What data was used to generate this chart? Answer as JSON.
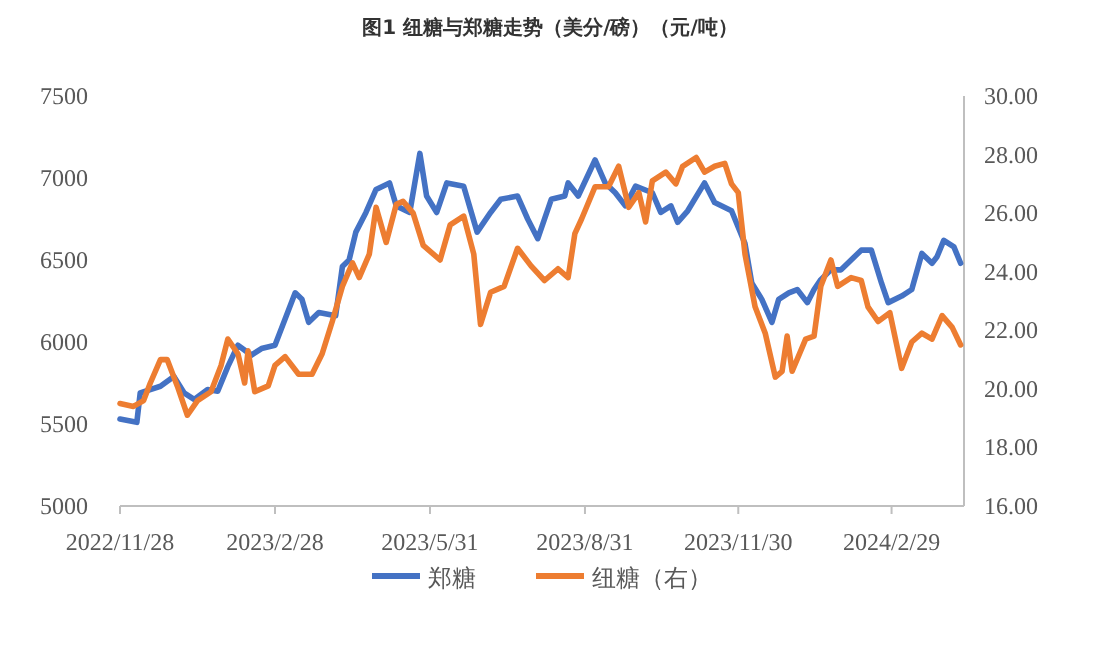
{
  "chart_data": {
    "type": "line",
    "title": "图1 纽糖与郑糖走势（美分/磅）（元/吨）",
    "legend": "bottom",
    "line_style": "solid",
    "marker": "none",
    "xlim": [
      "2022-11-28",
      "2024-04-12"
    ],
    "xticks": [
      {
        "value": "2022-11-28",
        "label": "2022/11/28"
      },
      {
        "value": "2023-02-28",
        "label": "2023/2/28"
      },
      {
        "value": "2023-05-31",
        "label": "2023/5/31"
      },
      {
        "value": "2023-08-31",
        "label": "2023/8/31"
      },
      {
        "value": "2023-11-30",
        "label": "2023/11/30"
      },
      {
        "value": "2024-02-29",
        "label": "2024/2/29"
      }
    ],
    "ylim": [
      5000,
      7500
    ],
    "yticks": [
      5000,
      5500,
      6000,
      6500,
      7000,
      7500
    ],
    "y2lim": [
      16,
      30
    ],
    "y2ticks": [
      {
        "value": 16,
        "label": "16.00"
      },
      {
        "value": 18,
        "label": "18.00"
      },
      {
        "value": 20,
        "label": "20.00"
      },
      {
        "value": 22,
        "label": "22.00"
      },
      {
        "value": 24,
        "label": "24.00"
      },
      {
        "value": 26,
        "label": "26.00"
      },
      {
        "value": 28,
        "label": "28.00"
      },
      {
        "value": 30,
        "label": "30.00"
      }
    ],
    "series": [
      {
        "name": "郑糖",
        "color": "#4472c4",
        "type": "line",
        "x": [
          "2022-11-28",
          "2022-12-08",
          "2022-12-10",
          "2022-12-22",
          "2022-12-30",
          "2023-01-05",
          "2023-01-11",
          "2023-01-19",
          "2023-01-25",
          "2023-01-31",
          "2023-02-06",
          "2023-02-14",
          "2023-02-20",
          "2023-02-28",
          "2023-03-06",
          "2023-03-12",
          "2023-03-16",
          "2023-03-20",
          "2023-03-26",
          "2023-04-05",
          "2023-04-09",
          "2023-04-13",
          "2023-04-17",
          "2023-04-23",
          "2023-04-29",
          "2023-05-07",
          "2023-05-11",
          "2023-05-19",
          "2023-05-25",
          "2023-05-29",
          "2023-06-04",
          "2023-06-10",
          "2023-06-20",
          "2023-06-28",
          "2023-07-06",
          "2023-07-12",
          "2023-07-22",
          "2023-07-28",
          "2023-08-03",
          "2023-08-11",
          "2023-08-19",
          "2023-08-21",
          "2023-08-27",
          "2023-09-06",
          "2023-09-12",
          "2023-09-18",
          "2023-09-24",
          "2023-09-30",
          "2023-10-10",
          "2023-10-15",
          "2023-10-21",
          "2023-10-25",
          "2023-10-31",
          "2023-11-10",
          "2023-11-16",
          "2023-11-26",
          "2023-11-30",
          "2023-12-04",
          "2023-12-08",
          "2023-12-14",
          "2023-12-20",
          "2023-12-24",
          "2023-12-30",
          "2024-01-04",
          "2024-01-10",
          "2024-01-14",
          "2024-01-18",
          "2024-01-24",
          "2024-01-30",
          "2024-02-05",
          "2024-02-11",
          "2024-02-17",
          "2024-02-23",
          "2024-02-27",
          "2024-03-06",
          "2024-03-12",
          "2024-03-18",
          "2024-03-24",
          "2024-03-27",
          "2024-03-31",
          "2024-04-06",
          "2024-04-10"
        ],
        "values": [
          5530,
          5510,
          5690,
          5730,
          5790,
          5690,
          5650,
          5710,
          5700,
          5850,
          5980,
          5920,
          5960,
          5980,
          6140,
          6300,
          6260,
          6120,
          6180,
          6160,
          6460,
          6500,
          6670,
          6790,
          6930,
          6970,
          6830,
          6790,
          7150,
          6890,
          6790,
          6970,
          6950,
          6670,
          6790,
          6870,
          6890,
          6750,
          6630,
          6870,
          6890,
          6970,
          6890,
          7110,
          6970,
          6910,
          6830,
          6950,
          6910,
          6790,
          6830,
          6730,
          6800,
          6970,
          6850,
          6800,
          6700,
          6600,
          6360,
          6260,
          6120,
          6260,
          6300,
          6320,
          6240,
          6320,
          6380,
          6440,
          6440,
          6500,
          6560,
          6560,
          6360,
          6240,
          6280,
          6320,
          6540,
          6480,
          6520,
          6620,
          6580,
          6480
        ]
      },
      {
        "name": "纽糖（右）",
        "color": "#ed7d31",
        "type": "line",
        "axis": "y2",
        "x": [
          "2022-11-28",
          "2022-12-06",
          "2022-12-12",
          "2022-12-16",
          "2022-12-22",
          "2022-12-26",
          "2023-01-01",
          "2023-01-07",
          "2023-01-13",
          "2023-01-21",
          "2023-01-27",
          "2023-01-31",
          "2023-02-06",
          "2023-02-10",
          "2023-02-12",
          "2023-02-16",
          "2023-02-24",
          "2023-02-28",
          "2023-03-06",
          "2023-03-14",
          "2023-03-22",
          "2023-03-28",
          "2023-04-03",
          "2023-04-09",
          "2023-04-15",
          "2023-04-19",
          "2023-04-25",
          "2023-04-29",
          "2023-05-05",
          "2023-05-11",
          "2023-05-15",
          "2023-05-21",
          "2023-05-27",
          "2023-06-06",
          "2023-06-12",
          "2023-06-20",
          "2023-06-26",
          "2023-06-30",
          "2023-07-06",
          "2023-07-14",
          "2023-07-22",
          "2023-07-30",
          "2023-08-07",
          "2023-08-15",
          "2023-08-21",
          "2023-08-25",
          "2023-08-29",
          "2023-09-06",
          "2023-09-14",
          "2023-09-20",
          "2023-09-26",
          "2023-10-02",
          "2023-10-06",
          "2023-10-10",
          "2023-10-18",
          "2023-10-24",
          "2023-10-28",
          "2023-11-05",
          "2023-11-10",
          "2023-11-16",
          "2023-11-22",
          "2023-11-26",
          "2023-11-30",
          "2023-12-04",
          "2023-12-10",
          "2023-12-16",
          "2023-12-22",
          "2023-12-26",
          "2023-12-29",
          "2024-01-01",
          "2024-01-09",
          "2024-01-14",
          "2024-01-18",
          "2024-01-24",
          "2024-01-28",
          "2024-02-05",
          "2024-02-11",
          "2024-02-15",
          "2024-02-21",
          "2024-02-28",
          "2024-03-06",
          "2024-03-12",
          "2024-03-18",
          "2024-03-24",
          "2024-03-30",
          "2024-04-05",
          "2024-04-10"
        ],
        "values": [
          19.5,
          19.4,
          19.6,
          20.2,
          21.0,
          21.0,
          20.1,
          19.1,
          19.6,
          19.9,
          20.8,
          21.7,
          21.2,
          20.2,
          21.3,
          19.9,
          20.1,
          20.8,
          21.1,
          20.5,
          20.5,
          21.2,
          22.3,
          23.5,
          24.3,
          23.8,
          24.6,
          26.2,
          25.0,
          26.3,
          26.4,
          26.0,
          24.9,
          24.4,
          25.6,
          25.9,
          24.6,
          22.2,
          23.3,
          23.5,
          24.8,
          24.2,
          23.7,
          24.1,
          23.8,
          25.3,
          25.8,
          26.9,
          26.9,
          27.6,
          26.2,
          26.7,
          25.7,
          27.1,
          27.4,
          27.0,
          27.6,
          27.9,
          27.4,
          27.6,
          27.7,
          27.0,
          26.7,
          24.6,
          22.8,
          21.9,
          20.4,
          20.6,
          21.8,
          20.6,
          21.7,
          21.8,
          23.5,
          24.4,
          23.5,
          23.8,
          23.7,
          22.8,
          22.3,
          22.6,
          20.7,
          21.6,
          21.9,
          21.7,
          22.5,
          22.1,
          21.5
        ]
      }
    ]
  }
}
